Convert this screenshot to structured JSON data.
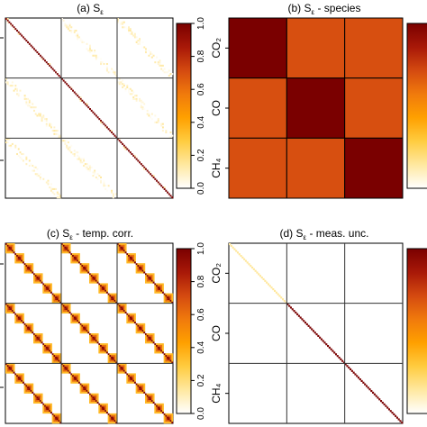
{
  "figure": {
    "colorscale": {
      "stops": [
        "#ffffff",
        "#ffe8a0",
        "#ffcc40",
        "#ffa000",
        "#f07a0c",
        "#d44a10",
        "#a81808",
        "#7a0000"
      ],
      "ticks": [
        "0.0",
        "0.2",
        "0.4",
        "0.6",
        "0.8",
        "1.0"
      ]
    },
    "species_tick_labels": [
      "CO₂",
      "CO",
      "CH₄"
    ]
  },
  "chart_data": [
    {
      "type": "heatmap",
      "panel_label": "(a)",
      "title": "S",
      "title_subscript": "ε",
      "title_suffix": "",
      "description": "full error covariance: 3x3 species blocks, strong diagonal, sparse off-diagonal structure",
      "blocks": 3,
      "n_per_block": 36,
      "species": [
        "CO₂",
        "CO",
        "CH₄"
      ],
      "zlim": [
        0,
        1
      ],
      "colorbar_ticks": [
        0.0,
        0.2,
        0.4,
        0.6,
        0.8,
        1.0
      ],
      "diagonal_value": 1.0,
      "offdiag_block_pattern": "sparse_speckle",
      "offdiag_max_value": 0.15
    },
    {
      "type": "heatmap",
      "panel_label": "(b)",
      "title": "S",
      "title_subscript": "ε",
      "title_suffix": " - species",
      "description": "species correlation",
      "categories": [
        "CO₂",
        "CO",
        "CH₄"
      ],
      "values": [
        [
          1.0,
          0.7,
          0.7
        ],
        [
          0.7,
          1.0,
          0.7
        ],
        [
          0.7,
          0.7,
          1.0
        ]
      ],
      "zlim": [
        0,
        1
      ],
      "colorbar_ticks": []
    },
    {
      "type": "heatmap",
      "panel_label": "(c)",
      "title": "S",
      "title_subscript": "ε",
      "title_suffix": " - temp. corr.",
      "description": "temporal correlation, banded in every block",
      "blocks": 3,
      "n_per_block": 36,
      "zlim": [
        0,
        1
      ],
      "colorbar_ticks": [
        0.0,
        0.2,
        0.4,
        0.6,
        0.8,
        1.0
      ],
      "block_size": 6,
      "block_peak_value": 1.0,
      "block_edge_value": 0.35
    },
    {
      "type": "heatmap",
      "panel_label": "(d)",
      "title": "S",
      "title_subscript": "ε",
      "title_suffix": " - meas. unc.",
      "description": "measurement uncertainty, diagonal only",
      "categories": [
        "CO₂",
        "CO",
        "CH₄"
      ],
      "n_per_block": 36,
      "diagonal_values": [
        0.15,
        1.0,
        1.0
      ],
      "zlim": [
        0,
        1
      ],
      "colorbar_ticks": []
    }
  ]
}
